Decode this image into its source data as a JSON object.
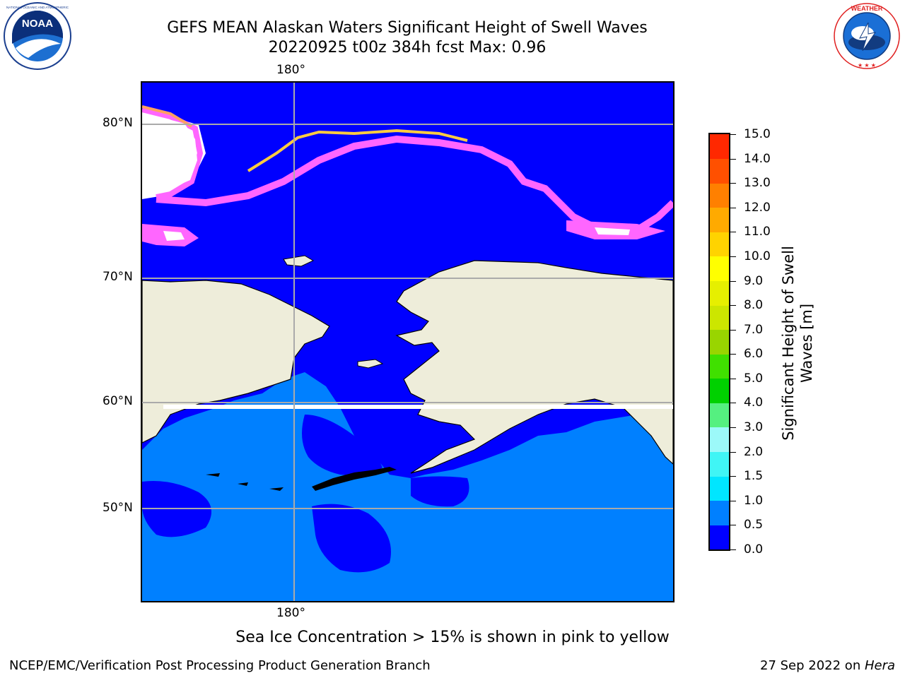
{
  "header": {
    "title_line1": "GEFS MEAN Alaskan Waters Significant Height of Swell Waves",
    "title_line2": "20220925 t00z 384h fcst   Max: 0.96"
  },
  "logos": {
    "left": {
      "text": "NOAA",
      "ring_text": "NATIONAL OCEANIC AND ATMOSPHERIC ADMINISTRATION · U.S. DEPARTMENT OF COMMERCE"
    },
    "right": {
      "ring_text": "NATIONAL WEATHER SERVICE"
    }
  },
  "map": {
    "lon_label_top": "180°",
    "lon_label_bottom": "180°",
    "lat_labels": [
      "80°N",
      "70°N",
      "60°N",
      "50°N"
    ],
    "colors": {
      "land": "#eeedda",
      "ocean_low": "#0000ff",
      "ocean_mid": "#0080ff",
      "ice_low": "#ff66ff",
      "ice_mid": "#ffa060",
      "ice_high": "#ffee00",
      "gridline": "#aaaaaa"
    }
  },
  "colorbar": {
    "tick_labels": [
      "15.0",
      "14.0",
      "13.0",
      "12.0",
      "11.0",
      "10.0",
      "9.0",
      "8.0",
      "7.0",
      "6.0",
      "5.0",
      "4.0",
      "3.0",
      "2.0",
      "1.5",
      "1.0",
      "0.5",
      "0.0"
    ],
    "colors_bottom_to_top": [
      "#0000ff",
      "#0080ff",
      "#00e6ff",
      "#40f5f5",
      "#9cf9f9",
      "#55f080",
      "#00d100",
      "#40e000",
      "#99d500",
      "#cce600",
      "#e6ef00",
      "#ffff00",
      "#ffd300",
      "#ffaa00",
      "#ff8000",
      "#ff5000",
      "#ff2800",
      "#ff0000"
    ],
    "label_line1": "Significant Height of Swell",
    "label_line2": "Waves [m]"
  },
  "note": "Sea Ice Concentration > 15% is shown in pink to yellow",
  "footer": {
    "left": "NCEP/EMC/Verification Post Processing Product Generation Branch",
    "right_prefix": "27 Sep 2022 on ",
    "right_italic": "Hera"
  }
}
